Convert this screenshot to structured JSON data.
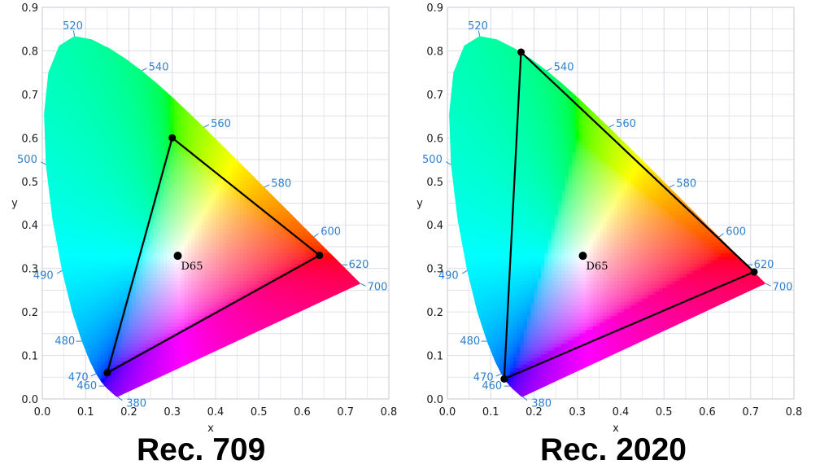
{
  "chart_data": [
    {
      "type": "scatter",
      "title": "Rec. 709",
      "xlabel": "x",
      "ylabel": "y",
      "xlim": [
        0,
        0.8
      ],
      "ylim": [
        0,
        0.9
      ],
      "x_ticks": [
        0.0,
        0.1,
        0.2,
        0.3,
        0.4,
        0.5,
        0.6,
        0.7,
        0.8
      ],
      "y_ticks": [
        0.0,
        0.1,
        0.2,
        0.3,
        0.4,
        0.5,
        0.6,
        0.7,
        0.8,
        0.9
      ],
      "grid": true,
      "spectral_locus_labels": [
        {
          "label": "380",
          "x": 0.1741,
          "y": 0.005
        },
        {
          "label": "460",
          "x": 0.144,
          "y": 0.0297
        },
        {
          "label": "470",
          "x": 0.1241,
          "y": 0.0578
        },
        {
          "label": "480",
          "x": 0.0913,
          "y": 0.1327
        },
        {
          "label": "490",
          "x": 0.0454,
          "y": 0.295
        },
        {
          "label": "500",
          "x": 0.0082,
          "y": 0.5384
        },
        {
          "label": "520",
          "x": 0.0743,
          "y": 0.8338
        },
        {
          "label": "540",
          "x": 0.2296,
          "y": 0.7543
        },
        {
          "label": "560",
          "x": 0.3731,
          "y": 0.6245
        },
        {
          "label": "580",
          "x": 0.5125,
          "y": 0.4866
        },
        {
          "label": "600",
          "x": 0.627,
          "y": 0.3725
        },
        {
          "label": "620",
          "x": 0.6915,
          "y": 0.3083
        },
        {
          "label": "700",
          "x": 0.7347,
          "y": 0.2653
        }
      ],
      "gamut_primaries": [
        {
          "name": "R",
          "x": 0.64,
          "y": 0.33
        },
        {
          "name": "G",
          "x": 0.3,
          "y": 0.6
        },
        {
          "name": "B",
          "x": 0.15,
          "y": 0.06
        }
      ],
      "white_point": {
        "label": "D65",
        "x": 0.3127,
        "y": 0.329
      }
    },
    {
      "type": "scatter",
      "title": "Rec. 2020",
      "xlabel": "x",
      "ylabel": "y",
      "xlim": [
        0,
        0.8
      ],
      "ylim": [
        0,
        0.9
      ],
      "x_ticks": [
        0.0,
        0.1,
        0.2,
        0.3,
        0.4,
        0.5,
        0.6,
        0.7,
        0.8
      ],
      "y_ticks": [
        0.0,
        0.1,
        0.2,
        0.3,
        0.4,
        0.5,
        0.6,
        0.7,
        0.8,
        0.9
      ],
      "grid": true,
      "spectral_locus_labels": [
        {
          "label": "380",
          "x": 0.1741,
          "y": 0.005
        },
        {
          "label": "460",
          "x": 0.144,
          "y": 0.0297
        },
        {
          "label": "470",
          "x": 0.1241,
          "y": 0.0578
        },
        {
          "label": "480",
          "x": 0.0913,
          "y": 0.1327
        },
        {
          "label": "490",
          "x": 0.0454,
          "y": 0.295
        },
        {
          "label": "500",
          "x": 0.0082,
          "y": 0.5384
        },
        {
          "label": "520",
          "x": 0.0743,
          "y": 0.8338
        },
        {
          "label": "540",
          "x": 0.2296,
          "y": 0.7543
        },
        {
          "label": "560",
          "x": 0.3731,
          "y": 0.6245
        },
        {
          "label": "580",
          "x": 0.5125,
          "y": 0.4866
        },
        {
          "label": "600",
          "x": 0.627,
          "y": 0.3725
        },
        {
          "label": "620",
          "x": 0.6915,
          "y": 0.3083
        },
        {
          "label": "700",
          "x": 0.7347,
          "y": 0.2653
        }
      ],
      "gamut_primaries": [
        {
          "name": "R",
          "x": 0.708,
          "y": 0.292
        },
        {
          "name": "G",
          "x": 0.17,
          "y": 0.797
        },
        {
          "name": "B",
          "x": 0.131,
          "y": 0.046
        }
      ],
      "white_point": {
        "label": "D65",
        "x": 0.3127,
        "y": 0.329
      }
    }
  ],
  "colors": {
    "grid": "#d9d9e3",
    "tick_text": "#1a1a1a",
    "wavelength_text": "#2f7fd0",
    "gamut_line": "#000000"
  }
}
